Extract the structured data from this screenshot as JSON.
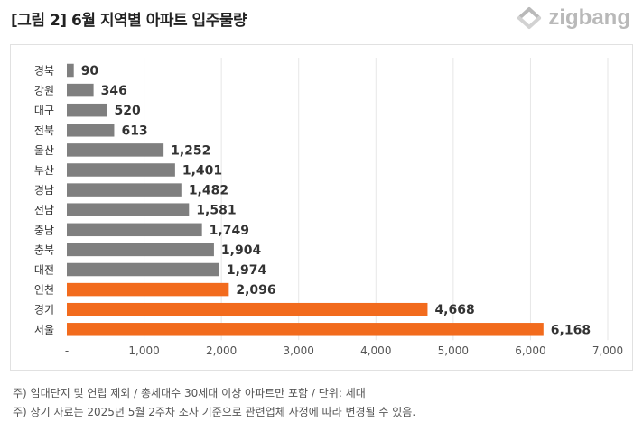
{
  "header": {
    "title": "[그림 2] 6월 지역별 아파트 입주물량",
    "brand": "zigbang",
    "brand_color": "#b9b9b9"
  },
  "chart_data": {
    "type": "bar",
    "orientation": "horizontal",
    "title": "",
    "categories": [
      "경북",
      "강원",
      "대구",
      "전북",
      "울산",
      "부산",
      "경남",
      "전남",
      "충남",
      "충북",
      "대전",
      "인천",
      "경기",
      "서울"
    ],
    "values": [
      90,
      346,
      520,
      613,
      1252,
      1401,
      1482,
      1581,
      1749,
      1904,
      1974,
      2096,
      4668,
      6168
    ],
    "value_labels": [
      "90",
      "346",
      "520",
      "613",
      "1,252",
      "1,401",
      "1,482",
      "1,581",
      "1,749",
      "1,904",
      "1,974",
      "2,096",
      "4,668",
      "6,168"
    ],
    "highlight": [
      false,
      false,
      false,
      false,
      false,
      false,
      false,
      false,
      false,
      false,
      false,
      true,
      true,
      true
    ],
    "colors": {
      "default": "#7f7f7f",
      "highlight": "#f26b1d"
    },
    "xlim": [
      0,
      7000
    ],
    "xticks": [
      0,
      1000,
      2000,
      3000,
      4000,
      5000,
      6000,
      7000
    ],
    "xtick_labels": [
      "-",
      "1,000",
      "2,000",
      "3,000",
      "4,000",
      "5,000",
      "6,000",
      "7,000"
    ],
    "grid": "vertical",
    "legend": "none"
  },
  "footnotes": [
    "주) 임대단지 및 연립 제외 / 총세대수 30세대 이상 아파트만 포함 / 단위: 세대",
    "주) 상기 자료는 2025년 5월 2주차 조사 기준으로 관련업체 사정에 따라 변경될 수 있음."
  ]
}
